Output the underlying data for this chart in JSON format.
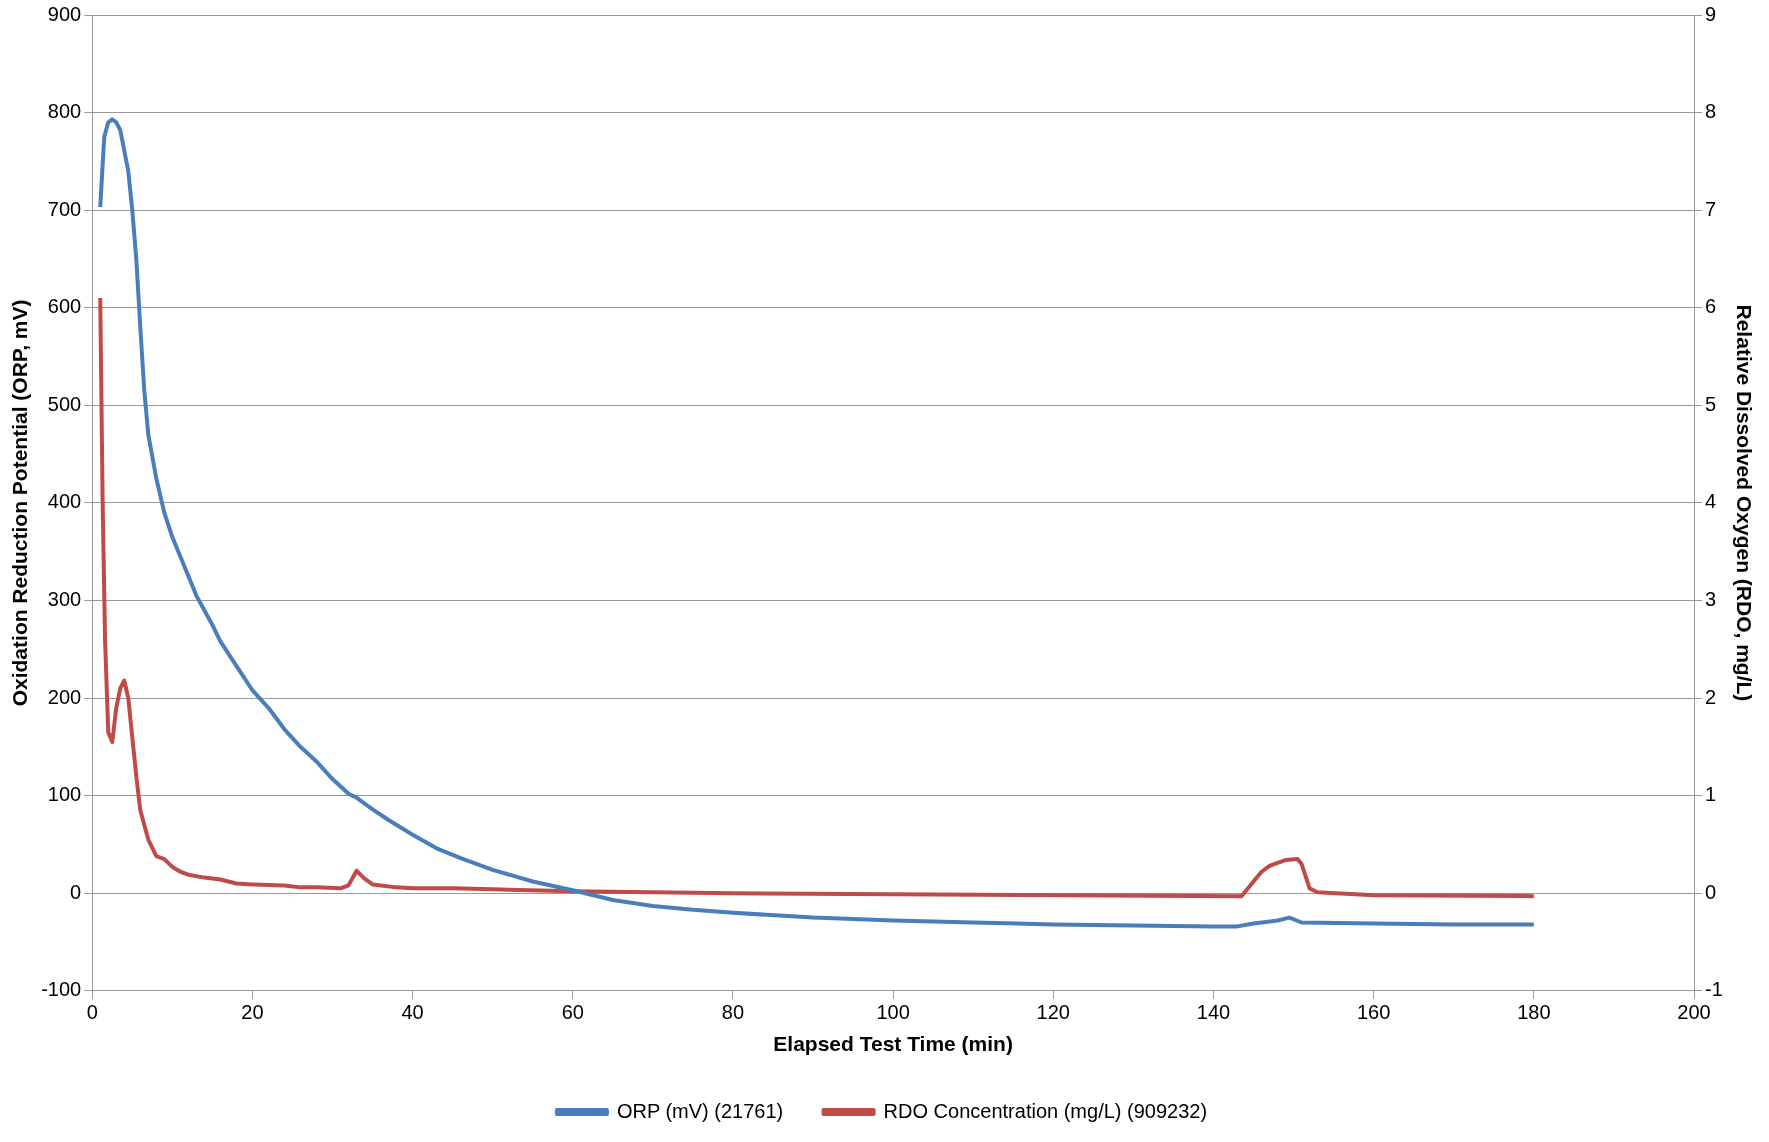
{
  "chart_data": {
    "type": "line",
    "xlabel": "Elapsed Test Time (min)",
    "ylabel": "Oxidation Reduction Potential (ORP, mV)",
    "y2label": "Relative Dissolved Oxygen (RDO, mg/L)",
    "xlim": [
      0,
      200
    ],
    "xticks": [
      0,
      20,
      40,
      60,
      80,
      100,
      120,
      140,
      160,
      180,
      200
    ],
    "ylim": [
      -100,
      900
    ],
    "yticks": [
      -100,
      0,
      100,
      200,
      300,
      400,
      500,
      600,
      700,
      800,
      900
    ],
    "y2lim": [
      -1,
      9
    ],
    "y2ticks": [
      -1,
      0,
      1,
      2,
      3,
      4,
      5,
      6,
      7,
      8,
      9
    ],
    "grid": "y",
    "legend": "bottom",
    "marker": "none",
    "line_style": "solid",
    "series": [
      {
        "name": "ORP (mV) (21761)",
        "color": "#4a7ebb",
        "x": [
          1,
          1.5,
          2,
          2.5,
          3,
          3.5,
          4.5,
          5,
          5.5,
          6,
          6.5,
          7,
          8,
          9,
          10,
          11,
          12,
          13,
          14,
          15,
          16,
          18,
          20,
          22,
          24,
          26,
          28,
          30,
          32,
          33,
          35,
          37,
          40,
          43,
          46,
          50,
          55,
          60,
          65,
          70,
          75,
          80,
          90,
          100,
          110,
          120,
          130,
          140,
          143,
          145,
          148,
          149.5,
          151,
          160,
          170,
          180
        ],
        "values": [
          703,
          775,
          790,
          793,
          790,
          782,
          740,
          700,
          650,
          580,
          515,
          470,
          425,
          390,
          365,
          345,
          325,
          305,
          290,
          275,
          258,
          233,
          208,
          190,
          168,
          150,
          135,
          117,
          102,
          98,
          86,
          75,
          60,
          46,
          36,
          24,
          12,
          3,
          -7,
          -13,
          -17,
          -20,
          -25,
          -28,
          -30,
          -32,
          -33,
          -34,
          -34,
          -31,
          -28,
          -25,
          -30,
          -31,
          -32,
          -32
        ]
      },
      {
        "name": "RDO Concentration (mg/L) (909232)",
        "color": "#be4b48",
        "axis": "y2",
        "x": [
          1,
          1.3,
          1.6,
          2,
          2.5,
          3,
          3.5,
          4,
          4.5,
          5,
          5.5,
          6,
          7,
          8,
          9,
          10,
          11,
          12,
          14,
          16,
          18,
          20,
          24,
          26,
          28,
          31,
          32,
          33,
          34,
          35,
          38,
          40,
          45,
          50,
          60,
          70,
          80,
          100,
          143.5,
          145,
          146,
          147,
          148,
          149,
          150.5,
          151,
          152,
          153,
          160,
          180
        ],
        "values": [
          6.1,
          4,
          2.6,
          1.65,
          1.55,
          1.9,
          2.1,
          2.18,
          2,
          1.6,
          1.2,
          0.85,
          0.55,
          0.38,
          0.35,
          0.27,
          0.22,
          0.19,
          0.16,
          0.14,
          0.1,
          0.09,
          0.08,
          0.06,
          0.06,
          0.05,
          0.08,
          0.23,
          0.15,
          0.09,
          0.06,
          0.05,
          0.05,
          0.04,
          0.02,
          0.01,
          0,
          -0.01,
          -0.03,
          0.12,
          0.22,
          0.28,
          0.31,
          0.34,
          0.35,
          0.3,
          0.05,
          0.01,
          -0.02,
          -0.03
        ]
      }
    ]
  }
}
